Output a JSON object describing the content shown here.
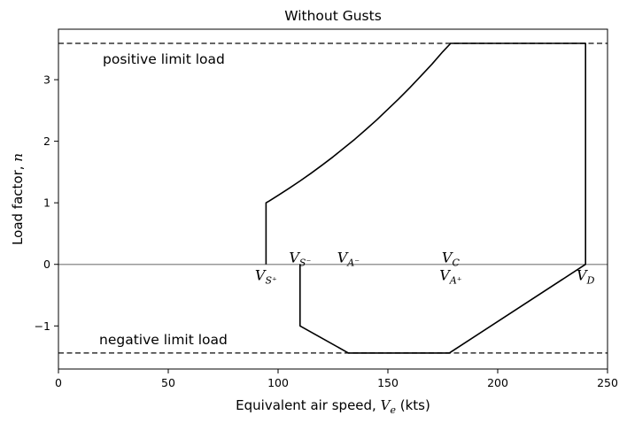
{
  "chart_data": {
    "type": "line",
    "title": "Without Gusts",
    "xlabel": "Equivalent air speed, V_e (kts)",
    "ylabel": "Load factor, n",
    "xlim": [
      0,
      250
    ],
    "ylim": [
      -1.7,
      3.82
    ],
    "xticks": [
      0,
      50,
      100,
      150,
      200,
      250
    ],
    "yticks": [
      -1,
      0,
      1,
      2,
      3
    ],
    "grid": false,
    "envelope": {
      "x": [
        94.5,
        94.5,
        96,
        100,
        105,
        110,
        115,
        120,
        125,
        130,
        135,
        140,
        145,
        150,
        155,
        160,
        165,
        170,
        175,
        178.6,
        240,
        240,
        178,
        132,
        110,
        110
      ],
      "y": [
        0,
        1.0,
        1.03,
        1.12,
        1.235,
        1.355,
        1.48,
        1.61,
        1.745,
        1.89,
        2.035,
        2.19,
        2.35,
        2.52,
        2.69,
        2.87,
        3.06,
        3.25,
        3.455,
        3.59,
        3.59,
        0,
        -1.44,
        -1.44,
        -1.0,
        0
      ]
    },
    "reference_lines": [
      {
        "name": "positive limit load",
        "y": 3.59,
        "style": "dashed"
      },
      {
        "name": "negative limit load",
        "y": -1.44,
        "style": "dashed"
      },
      {
        "name": "zero",
        "y": 0,
        "style": "solid-gray"
      }
    ],
    "annotations": {
      "positive_limit": "positive limit load",
      "negative_limit": "negative limit load"
    },
    "speed_labels": [
      {
        "main": "V",
        "sub": "S⁺",
        "x": 94.5,
        "y": -0.17
      },
      {
        "main": "V",
        "sub": "S⁻",
        "x": 110,
        "y": 0.12
      },
      {
        "main": "V",
        "sub": "A⁻",
        "x": 132,
        "y": 0.12
      },
      {
        "main": "V",
        "sub": "C",
        "x": 178.6,
        "y": 0.12
      },
      {
        "main": "V",
        "sub": "A⁺",
        "x": 178.6,
        "y": -0.17
      },
      {
        "main": "V",
        "sub": "D",
        "x": 240,
        "y": -0.17
      }
    ],
    "colors": {
      "envelope": "#000000",
      "limit_lines": "#333333",
      "zero_line": "#999999"
    }
  }
}
